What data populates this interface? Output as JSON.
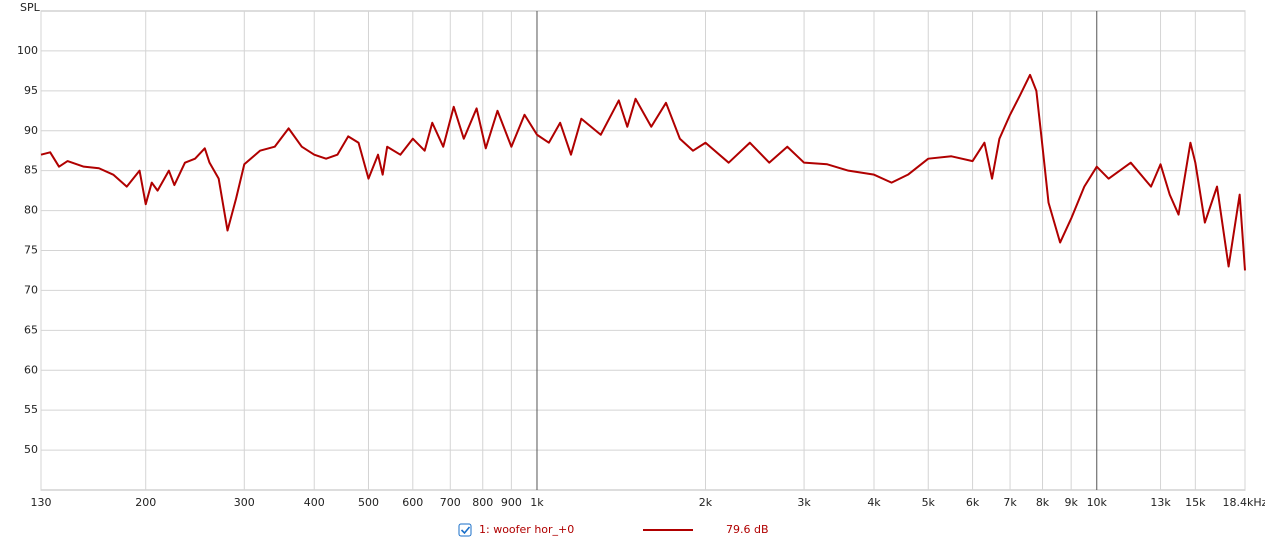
{
  "chart_data": {
    "type": "line",
    "y_label": "SPL",
    "log_x": true,
    "grid": true,
    "xlim": [
      130,
      18400
    ],
    "ylim": [
      45,
      105
    ],
    "xticks": [
      130,
      200,
      300,
      400,
      500,
      600,
      700,
      800,
      900,
      {
        "value": 1000,
        "label": "1k"
      },
      {
        "value": 2000,
        "label": "2k"
      },
      {
        "value": 3000,
        "label": "3k"
      },
      {
        "value": 4000,
        "label": "4k"
      },
      {
        "value": 5000,
        "label": "5k"
      },
      {
        "value": 6000,
        "label": "6k"
      },
      {
        "value": 7000,
        "label": "7k"
      },
      {
        "value": 8000,
        "label": "8k"
      },
      {
        "value": 9000,
        "label": "9k"
      },
      {
        "value": 10000,
        "label": "10k"
      },
      {
        "value": 13000,
        "label": "13k"
      },
      {
        "value": 15000,
        "label": "15k"
      },
      {
        "value": 18400,
        "label": "18.4kHz"
      }
    ],
    "yticks": [
      50,
      55,
      60,
      65,
      70,
      75,
      80,
      85,
      90,
      95,
      100
    ],
    "x": [
      130,
      135,
      140,
      145,
      155,
      165,
      175,
      185,
      195,
      200,
      205,
      210,
      220,
      225,
      235,
      245,
      255,
      260,
      270,
      280,
      290,
      300,
      320,
      340,
      360,
      380,
      400,
      420,
      440,
      460,
      480,
      500,
      520,
      530,
      540,
      570,
      600,
      630,
      650,
      680,
      710,
      740,
      780,
      810,
      850,
      900,
      950,
      1000,
      1050,
      1100,
      1150,
      1200,
      1300,
      1400,
      1450,
      1500,
      1600,
      1700,
      1800,
      1900,
      2000,
      2200,
      2400,
      2600,
      2800,
      3000,
      3300,
      3600,
      4000,
      4300,
      4600,
      5000,
      5500,
      6000,
      6300,
      6500,
      6700,
      7000,
      7300,
      7600,
      7800,
      8000,
      8200,
      8600,
      9000,
      9500,
      10000,
      10500,
      11500,
      12500,
      13000,
      13500,
      14000,
      14700,
      15000,
      15600,
      16400,
      17200,
      18000,
      18400
    ],
    "series": [
      {
        "name": "1: woofer hor_+0",
        "color": "#b00000",
        "level_label": "79.6 dB",
        "values": [
          87,
          87.3,
          85.5,
          86.2,
          85.5,
          85.3,
          84.5,
          83,
          85,
          80.8,
          83.5,
          82.5,
          85,
          83.2,
          86,
          86.5,
          87.8,
          86,
          84,
          77.5,
          81.5,
          85.8,
          87.5,
          88,
          90.3,
          88,
          87,
          86.5,
          87,
          89.3,
          88.5,
          84,
          87,
          84.5,
          88,
          87,
          89,
          87.5,
          91,
          88,
          93,
          89,
          92.8,
          87.8,
          92.5,
          88,
          92,
          89.5,
          88.5,
          91,
          87,
          91.5,
          89.5,
          93.8,
          90.5,
          94,
          90.5,
          93.5,
          89,
          87.5,
          88.5,
          86,
          88.5,
          86,
          88,
          86,
          85.8,
          85,
          84.5,
          83.5,
          84.5,
          86.5,
          86.8,
          86.2,
          88.5,
          84,
          89,
          92,
          94.5,
          97,
          95,
          88,
          81,
          76,
          79,
          83,
          85.5,
          84,
          86,
          83,
          85.8,
          82,
          79.5,
          88.5,
          86,
          78.5,
          83,
          73,
          82,
          72.5
        ]
      }
    ]
  }
}
